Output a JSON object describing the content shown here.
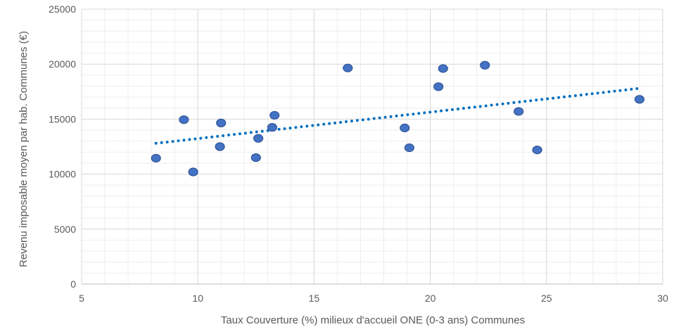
{
  "chart_data": {
    "type": "scatter",
    "title": "",
    "xlabel": "Taux Couverture (%) milieux d'accueil ONE (0-3 ans) Communes",
    "ylabel": "Revenu imposable moyen par hab. Communes (€)",
    "xlim": [
      5,
      30
    ],
    "ylim": [
      0,
      25000
    ],
    "x_ticks": [
      5,
      10,
      15,
      20,
      25,
      30
    ],
    "y_ticks": [
      0,
      5000,
      10000,
      15000,
      20000,
      25000
    ],
    "x_tick_labels": [
      "5",
      "10",
      "15",
      "20",
      "25",
      "30"
    ],
    "y_tick_labels": [
      "0",
      "5000",
      "10000",
      "15000",
      "20000",
      "25000"
    ],
    "grid": true,
    "series": [
      {
        "color": "#4472C4",
        "points": [
          {
            "x": 8.2,
            "y": 11450
          },
          {
            "x": 9.4,
            "y": 14950
          },
          {
            "x": 9.8,
            "y": 10200
          },
          {
            "x": 10.95,
            "y": 12500
          },
          {
            "x": 11.0,
            "y": 14650
          },
          {
            "x": 12.5,
            "y": 11500
          },
          {
            "x": 12.6,
            "y": 13250
          },
          {
            "x": 13.2,
            "y": 14250
          },
          {
            "x": 13.3,
            "y": 15350
          },
          {
            "x": 16.45,
            "y": 19650
          },
          {
            "x": 18.9,
            "y": 14200
          },
          {
            "x": 19.1,
            "y": 12400
          },
          {
            "x": 20.35,
            "y": 17950
          },
          {
            "x": 20.55,
            "y": 19600
          },
          {
            "x": 22.35,
            "y": 19900
          },
          {
            "x": 23.8,
            "y": 15700
          },
          {
            "x": 24.6,
            "y": 12200
          },
          {
            "x": 29.0,
            "y": 16800
          }
        ]
      }
    ],
    "trendline": {
      "style": "dotted",
      "color": "#0070C0",
      "x": [
        8.2,
        29.0
      ],
      "y": [
        12800,
        17800
      ]
    }
  }
}
